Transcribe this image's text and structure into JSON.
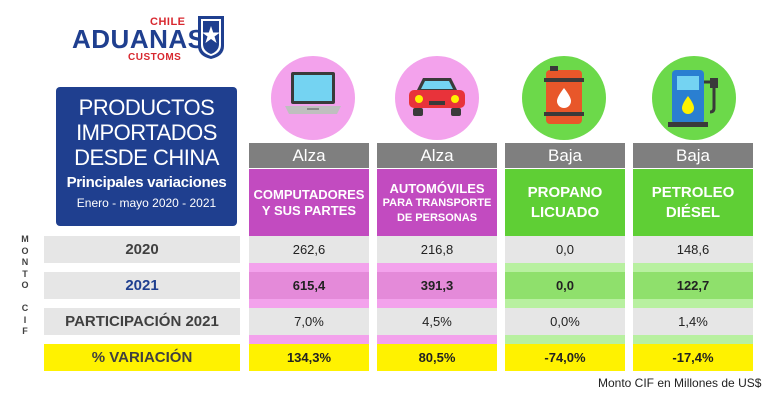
{
  "logo": {
    "chile": "CHILE",
    "main": "ADUANAS",
    "customs": "CUSTOMS"
  },
  "title": {
    "line1": "PRODUCTOS",
    "line2": "IMPORTADOS",
    "line3": "DESDE CHINA",
    "subtitle": "Principales variaciones",
    "period": "Enero - mayo  2020 - 2021"
  },
  "side_label": [
    "M",
    "O",
    "N",
    "T",
    "O",
    "",
    "C",
    "I",
    "F"
  ],
  "row_labels": {
    "y2020": "2020",
    "y2021": "2021",
    "share": "PARTICIPACIÓN 2021",
    "variation": "% VARIACIÓN"
  },
  "columns": [
    {
      "status": "Alza",
      "name_line1": "COMPUTADORES",
      "name_line2": "Y SUS PARTES",
      "icon": "laptop-icon",
      "v2020": "262,6",
      "v2021": "615,4",
      "share": "7,0%",
      "variation": "134,3%"
    },
    {
      "status": "Alza",
      "name_line1": "AUTOMÓVILES",
      "name_line2": "PARA TRANSPORTE",
      "name_line3": "DE PERSONAS",
      "icon": "car-icon",
      "v2020": "216,8",
      "v2021": "391,3",
      "share": "4,5%",
      "variation": "80,5%"
    },
    {
      "status": "Baja",
      "name_line1": "PROPANO",
      "name_line2": "LICUADO",
      "icon": "gas-barrel-icon",
      "v2020": "0,0",
      "v2021": "0,0",
      "share": "0,0%",
      "variation": "-74,0%"
    },
    {
      "status": "Baja",
      "name_line1": "PETROLEO",
      "name_line2": "DIÉSEL",
      "icon": "fuel-pump-icon",
      "v2020": "148,6",
      "v2021": "122,7",
      "share": "1,4%",
      "variation": "-17,4%"
    }
  ],
  "colors": {
    "navy": "#1f3f8f",
    "magenta": "#c24bc0",
    "pink": "#f3a2ec",
    "green": "#5fcf35",
    "lightgreen": "#b8f0a0",
    "yellow": "#fff200",
    "gray": "#7f7f7f"
  },
  "footnote": "Monto CIF en Millones de US$"
}
